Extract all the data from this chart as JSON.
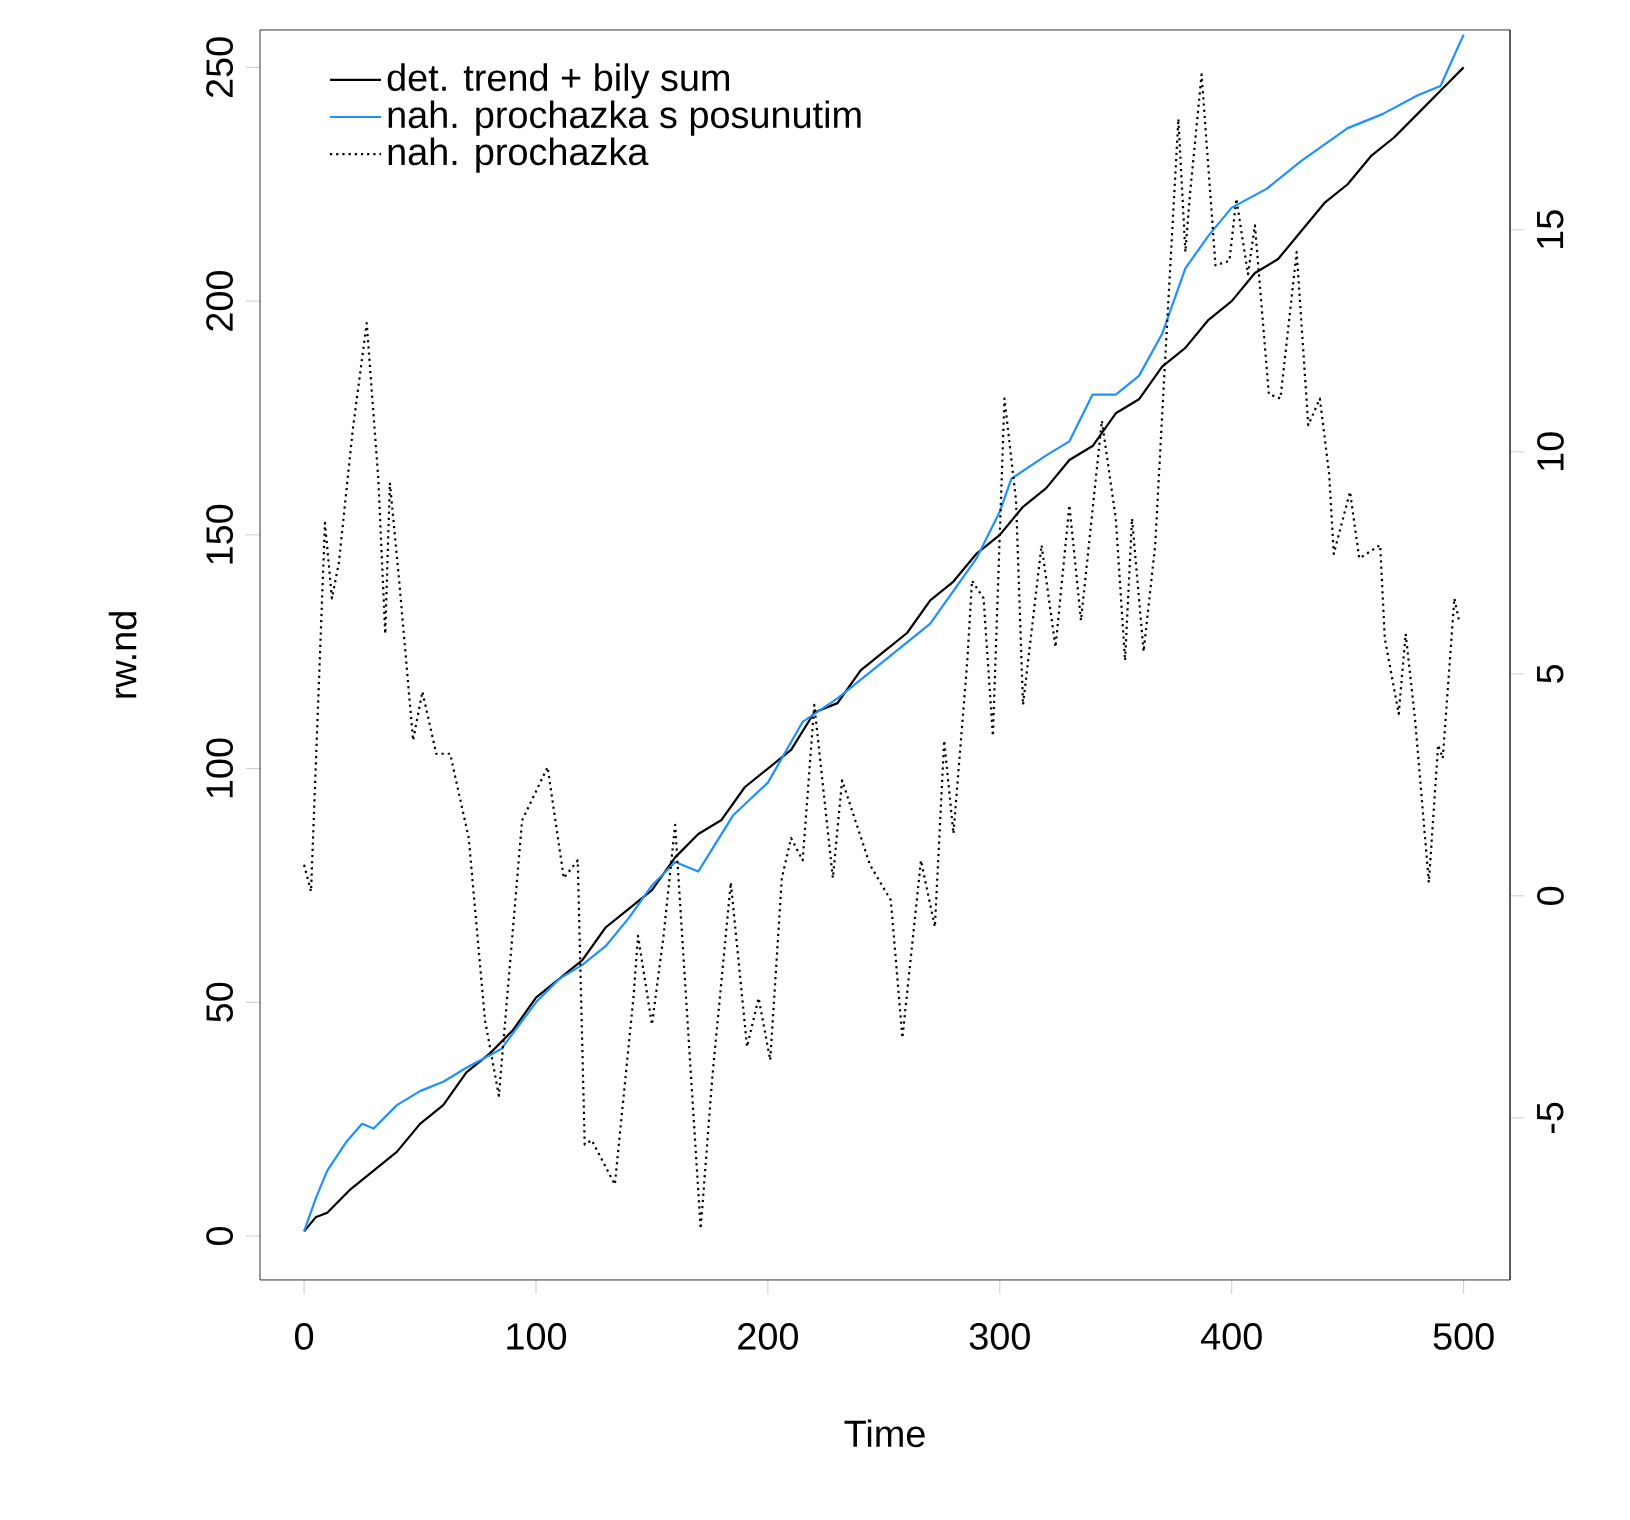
{
  "chart_data": {
    "type": "line",
    "xlabel": "Time",
    "ylabel": "rw.nd",
    "legend": "top left",
    "xlim": [
      -19,
      520
    ],
    "xticks": [
      0,
      100,
      200,
      300,
      400,
      500
    ],
    "ylim": [
      -9.4,
      258
    ],
    "yticks": [
      0,
      50,
      100,
      150,
      200,
      250
    ],
    "y2lim": [
      -8.65,
      19.5
    ],
    "y2ticks": [
      -5,
      0,
      5,
      10,
      15
    ],
    "series": [
      {
        "name": "det. trend + bily sum",
        "color": "#000000",
        "line_style": "solid",
        "x": [
          0,
          5,
          10,
          20,
          30,
          40,
          50,
          60,
          70,
          80,
          90,
          100,
          110,
          120,
          130,
          140,
          150,
          160,
          170,
          180,
          190,
          200,
          210,
          220,
          230,
          240,
          250,
          260,
          270,
          280,
          290,
          300,
          310,
          320,
          330,
          340,
          350,
          360,
          370,
          380,
          390,
          400,
          410,
          420,
          430,
          440,
          450,
          460,
          470,
          480,
          490,
          500
        ],
        "values": [
          1,
          4,
          5,
          10,
          14,
          18,
          24,
          28,
          35,
          39,
          44,
          51,
          55,
          59,
          66,
          70,
          74,
          81,
          86,
          89,
          96,
          100,
          104,
          112,
          114,
          121,
          125,
          129,
          136,
          140,
          146,
          150,
          156,
          160,
          166,
          169,
          176,
          179,
          186,
          190,
          196,
          200,
          206,
          209,
          215,
          221,
          225,
          231,
          235,
          240,
          245,
          250
        ]
      },
      {
        "name": "nah. prochazka s posunutim",
        "color": "#1e90ff",
        "line_style": "solid",
        "x": [
          0,
          5,
          10,
          18,
          25,
          30,
          40,
          50,
          60,
          70,
          85,
          100,
          110,
          120,
          130,
          140,
          150,
          160,
          170,
          185,
          200,
          215,
          230,
          245,
          260,
          270,
          280,
          290,
          300,
          305,
          320,
          330,
          340,
          350,
          360,
          370,
          375,
          380,
          390,
          400,
          415,
          430,
          450,
          465,
          480,
          490,
          500
        ],
        "values": [
          1,
          8,
          14,
          20,
          24,
          23,
          28,
          31,
          33,
          36,
          40,
          50,
          55,
          58,
          62,
          68,
          75,
          80,
          78,
          90,
          97,
          110,
          115,
          121,
          127,
          131,
          138,
          145,
          155,
          162,
          167,
          170,
          180,
          180,
          184,
          193,
          200,
          207,
          214,
          220,
          224,
          230,
          237,
          240,
          244,
          246,
          257
        ]
      },
      {
        "name": "nah. prochazka",
        "color": "#000000",
        "line_style": "dotted",
        "axis": "y2",
        "x": [
          0,
          3,
          9,
          12,
          15,
          21,
          27,
          32,
          35,
          37,
          41,
          47,
          51,
          57,
          63,
          71,
          78,
          84,
          94,
          105,
          112,
          118,
          121,
          124,
          134,
          142,
          144,
          150,
          155,
          160,
          171,
          176,
          184,
          191,
          196,
          201,
          206,
          210,
          215,
          220,
          228,
          232,
          244,
          253,
          258,
          266,
          272,
          276,
          280,
          286,
          288,
          293,
          297,
          302,
          307,
          310,
          318,
          324,
          330,
          335,
          344,
          350,
          354,
          357,
          362,
          367,
          371,
          377,
          380,
          382,
          387,
          393,
          399,
          402,
          407,
          410,
          416,
          421,
          428,
          433,
          438,
          442,
          444,
          451,
          455,
          464,
          466,
          472,
          475,
          479,
          485,
          489,
          491,
          496,
          498
        ],
        "values": [
          0.7,
          0.1,
          8.4,
          6.7,
          7.5,
          10.5,
          12.9,
          9.4,
          5.9,
          9.3,
          7.1,
          3.5,
          4.6,
          3.2,
          3.2,
          1.3,
          -2.8,
          -4.5,
          1.7,
          2.9,
          0.4,
          0.8,
          -5.6,
          -5.5,
          -6.5,
          -2.3,
          -0.9,
          -2.9,
          -0.9,
          1.6,
          -7.5,
          -4.1,
          0.3,
          -3.4,
          -2.3,
          -3.7,
          0.4,
          1.3,
          0.8,
          4.3,
          0.4,
          2.6,
          0.7,
          -0.1,
          -3.2,
          0.8,
          -0.7,
          3.5,
          1.4,
          5.3,
          7.1,
          6.7,
          3.6,
          11.2,
          8.9,
          4.3,
          7.9,
          5.6,
          8.8,
          6.2,
          10.7,
          8.5,
          5.3,
          8.5,
          5.5,
          7.9,
          11.8,
          17.5,
          14.5,
          15.8,
          18.5,
          14.2,
          14.3,
          15.7,
          14.0,
          15.1,
          11.3,
          11.2,
          14.5,
          10.6,
          11.2,
          9.5,
          7.7,
          9.1,
          7.6,
          7.9,
          5.8,
          4.1,
          5.9,
          4.0,
          0.3,
          3.4,
          3.1,
          6.7,
          6.2
        ]
      }
    ]
  }
}
